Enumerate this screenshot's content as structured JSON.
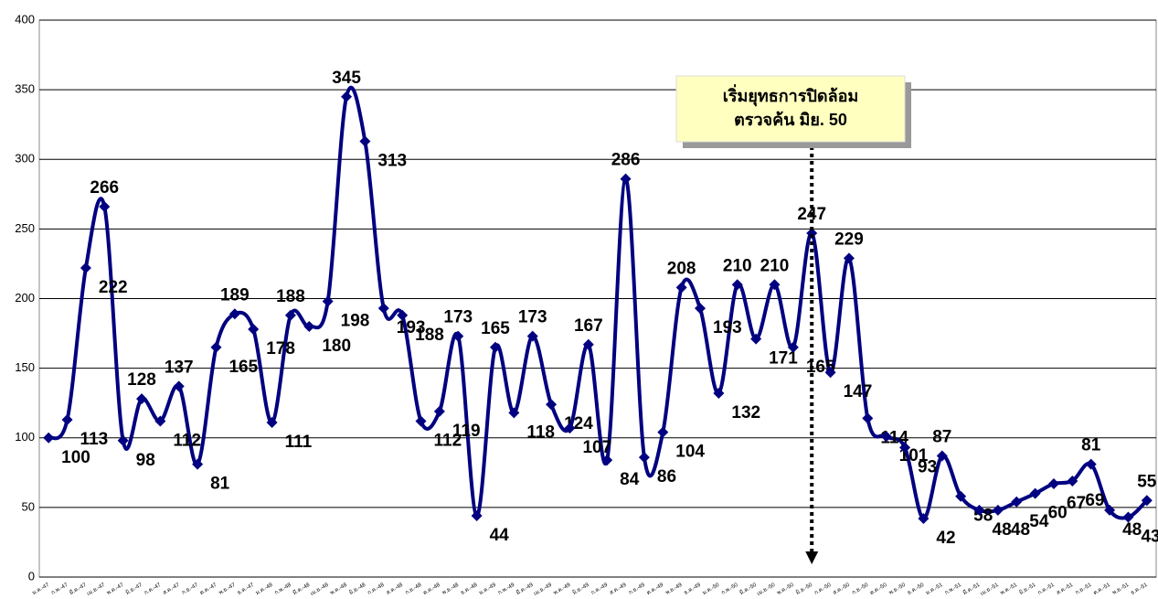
{
  "chart_data": {
    "type": "line",
    "annotation": [
      "เริ่มยุทธการปิดล้อม",
      "ตรวจค้น มิย. 50"
    ],
    "categories": [
      "ม.ค.-47",
      "ก.พ.-47",
      "มี.ค.-47",
      "เม.ย.-47",
      "พ.ค.-47",
      "มิ.ย.-47",
      "ก.ค.-47",
      "ส.ค.-47",
      "ก.ย.-47",
      "ต.ค.-47",
      "พ.ย.-47",
      "ธ.ค.-47",
      "ม.ค.-48",
      "ก.พ.-48",
      "มี.ค.-48",
      "เม.ย.-48",
      "พ.ค.-48",
      "มิ.ย.-48",
      "ก.ค.-48",
      "ส.ค.-48",
      "ก.ย.-48",
      "ต.ค.-48",
      "พ.ย.-48",
      "ธ.ค.-48",
      "ม.ค.-49",
      "ก.พ.-49",
      "มี.ค.-49",
      "เม.ย.-49",
      "พ.ค.-49",
      "มิ.ย.-49",
      "ก.ค.-49",
      "ส.ค.-49",
      "ก.ย.-49",
      "ต.ค.-49",
      "พ.ย.-49",
      "ธ.ค.-49",
      "ม.ค.-50",
      "ก.พ.-50",
      "มี.ค.-50",
      "เม.ย.-50",
      "พ.ค.-50",
      "มิ.ย.-50",
      "ก.ค.-50",
      "ส.ค.-50",
      "ก.ย.-50",
      "ต.ค.-50",
      "พ.ย.-50",
      "ธ.ค.-50",
      "ม.ค.-51",
      "ก.พ.-51",
      "มี.ค.-51",
      "เม.ย.-51",
      "พ.ค.-51",
      "มิ.ย.-51",
      "ก.ค.-51",
      "ส.ค.-51",
      "ก.ย.-51",
      "ต.ค.-51",
      "พ.ย.-51",
      "ธ.ค.-51"
    ],
    "series": [
      {
        "color": "#000080",
        "values": [
          100,
          113,
          222,
          266,
          98,
          128,
          112,
          137,
          81,
          165,
          189,
          178,
          111,
          188,
          180,
          198,
          345,
          313,
          193,
          188,
          112,
          119,
          173,
          44,
          165,
          118,
          173,
          124,
          107,
          167,
          84,
          286,
          86,
          104,
          208,
          193,
          132,
          210,
          171,
          210,
          165,
          247,
          147,
          229,
          114,
          101,
          93,
          42,
          87,
          58,
          48,
          48,
          54,
          60,
          67,
          69,
          81,
          48,
          43,
          55
        ]
      }
    ],
    "ylim": [
      0,
      400
    ],
    "yticks": [
      0,
      50,
      100,
      150,
      200,
      250,
      300,
      350,
      400
    ],
    "grid": true
  }
}
